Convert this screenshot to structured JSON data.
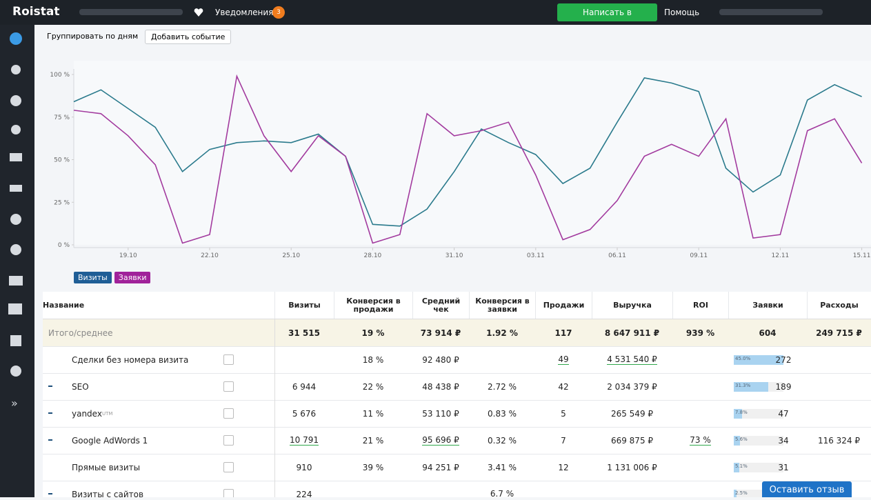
{
  "topbar": {
    "logo": "Roistat",
    "notifications": "Уведомления",
    "badge": "3",
    "support_button": "Написать в поддержку",
    "help": "Помощь"
  },
  "toolbar": {
    "group_by": "Группировать по дням",
    "add_event": "Добавить событие"
  },
  "chart_data": {
    "type": "line",
    "categories": [
      null,
      null,
      "19.10",
      null,
      null,
      "22.10",
      null,
      null,
      "25.10",
      null,
      null,
      "28.10",
      null,
      null,
      "31.10",
      null,
      null,
      "03.11",
      null,
      null,
      "06.11",
      null,
      null,
      "09.11",
      null,
      null,
      "12.11",
      null,
      null,
      "15.11"
    ],
    "series": [
      {
        "name": "Визиты",
        "color": "#2a7a8c",
        "legend_color": "#1f5e96",
        "values": [
          84,
          91,
          80,
          69,
          43,
          56,
          60,
          61,
          60,
          65,
          52,
          12,
          11,
          21,
          43,
          68,
          60,
          53,
          36,
          45,
          72,
          98,
          95,
          90,
          45,
          31,
          41,
          85,
          94,
          87
        ]
      },
      {
        "name": "Заявки",
        "color": "#a23a9e",
        "legend_color": "#a0229a",
        "values": [
          79,
          77,
          64,
          47,
          1,
          6,
          99,
          64,
          43,
          64,
          52,
          1,
          6,
          77,
          64,
          67,
          72,
          41,
          3,
          9,
          26,
          52,
          59,
          52,
          74,
          4,
          6,
          67,
          74,
          48
        ]
      }
    ],
    "ylim": [
      0,
      100
    ],
    "yticks": [
      {
        "value": 0,
        "label": "0 %"
      },
      {
        "value": 25,
        "label": "25 %"
      },
      {
        "value": 50,
        "label": "50 %"
      },
      {
        "value": 75,
        "label": "75 %"
      },
      {
        "value": 100,
        "label": "100 %"
      }
    ],
    "grid": false
  },
  "table": {
    "columns": [
      "Название",
      "Визиты",
      "Конверсия в продажи",
      "Средний чек",
      "Конверсия в заявки",
      "Продажи",
      "Выручка",
      "ROI",
      "Заявки",
      "Расходы"
    ],
    "total": {
      "name": "Итого/среднее",
      "visits": "31 515",
      "conv_sales": "19 %",
      "avg_check": "73 914 ₽",
      "conv_leads": "1.92 %",
      "sales": "117",
      "revenue": "8 647 911 ₽",
      "roi": "939 %",
      "leads": "604",
      "expenses": "249 715 ₽"
    },
    "rows": [
      {
        "name": "Сделки без номера визита",
        "visits": null,
        "conv_sales": "18 %",
        "avg_check": "92 480 ₽",
        "conv_leads": null,
        "sales": "49",
        "revenue": "4 531 540 ₽",
        "roi": null,
        "leads": "272",
        "leads_share": {
          "value": 45.0,
          "label": "45.0%"
        },
        "expenses": null
      },
      {
        "name": "SEO",
        "visits": "6 944",
        "conv_sales": "22 %",
        "avg_check": "48 438 ₽",
        "conv_leads": "2.72 %",
        "sales": "42",
        "revenue": "2 034 379 ₽",
        "roi": null,
        "leads": "189",
        "leads_share": {
          "value": 31.3,
          "label": "31.3%"
        },
        "expenses": null
      },
      {
        "name": "yandex",
        "sup": "UTM",
        "visits": "5 676",
        "conv_sales": "11 %",
        "avg_check": "53 110 ₽",
        "conv_leads": "0.83 %",
        "sales": "5",
        "revenue": "265 549 ₽",
        "roi": null,
        "leads": "47",
        "leads_share": {
          "value": 7.8,
          "label": "7.8%"
        },
        "expenses": null
      },
      {
        "name": "Google AdWords 1",
        "visits": "10 791",
        "conv_sales": "21 %",
        "avg_check": "95 696 ₽",
        "conv_leads": "0.32 %",
        "sales": "7",
        "revenue": "669 875 ₽",
        "roi": "73 %",
        "leads": "34",
        "leads_share": {
          "value": 5.6,
          "label": "5.6%"
        },
        "expenses": "116 324 ₽"
      },
      {
        "name": "Прямые визиты",
        "visits": "910",
        "conv_sales": "39 %",
        "avg_check": "94 251 ₽",
        "conv_leads": "3.41 %",
        "sales": "12",
        "revenue": "1 131 006 ₽",
        "roi": null,
        "leads": "31",
        "leads_share": {
          "value": 5.1,
          "label": "5.1%"
        },
        "expenses": null
      },
      {
        "name": "Визиты с сайтов",
        "visits": "224",
        "conv_sales": null,
        "avg_check": null,
        "conv_leads": "6.7 %",
        "sales": null,
        "revenue": null,
        "roi": null,
        "leads": null,
        "leads_share": {
          "value": 2.5,
          "label": "2.5%"
        },
        "expenses": null
      }
    ]
  },
  "feedback_button": "Оставить отзыв"
}
